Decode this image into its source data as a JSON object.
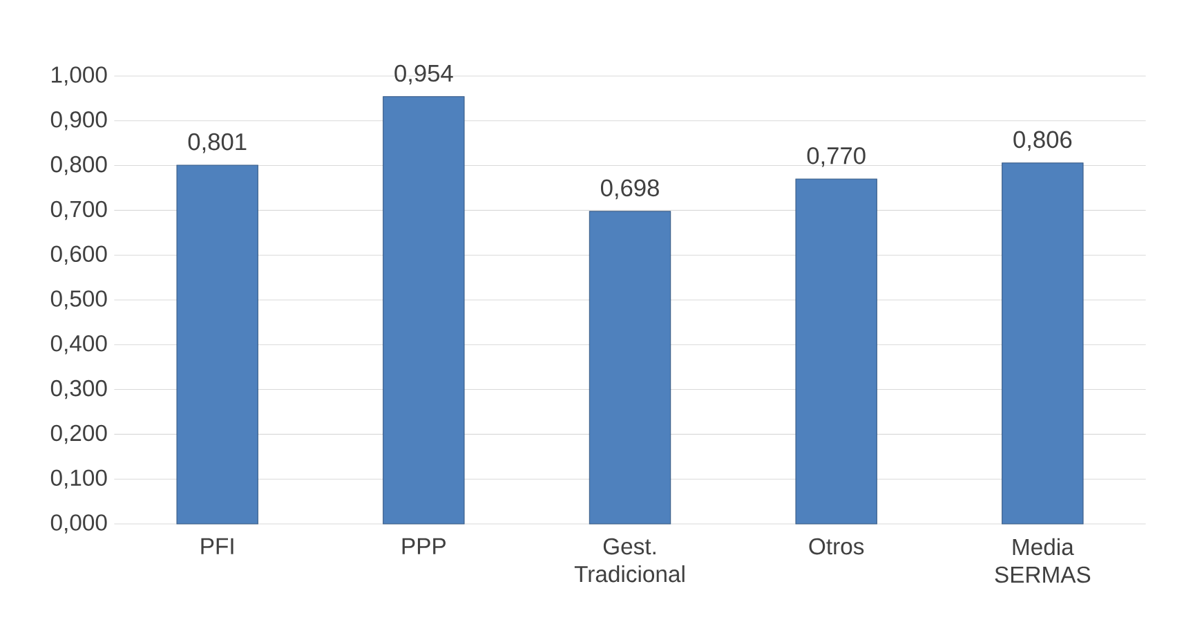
{
  "chart_data": {
    "type": "bar",
    "categories": [
      "PFI",
      "PPP",
      "Gest. Tradicional",
      "Otros",
      "Media SERMAS"
    ],
    "values": [
      0.801,
      0.954,
      0.698,
      0.77,
      0.806
    ],
    "value_labels": [
      "0,801",
      "0,954",
      "0,698",
      "0,770",
      "0,806"
    ],
    "color": "#4f81bd",
    "ylim": [
      0,
      1.0
    ],
    "yticks": [
      {
        "value": 0,
        "label": "0,000"
      },
      {
        "value": 0.1,
        "label": "0,100"
      },
      {
        "value": 0.2,
        "label": "0,200"
      },
      {
        "value": 0.3,
        "label": "0,300"
      },
      {
        "value": 0.4,
        "label": "0,400"
      },
      {
        "value": 0.5,
        "label": "0,500"
      },
      {
        "value": 0.6,
        "label": "0,600"
      },
      {
        "value": 0.7,
        "label": "0,700"
      },
      {
        "value": 0.8,
        "label": "0,800"
      },
      {
        "value": 0.9,
        "label": "0,900"
      },
      {
        "value": 1.0,
        "label": "1,000"
      }
    ],
    "grid": "y"
  }
}
